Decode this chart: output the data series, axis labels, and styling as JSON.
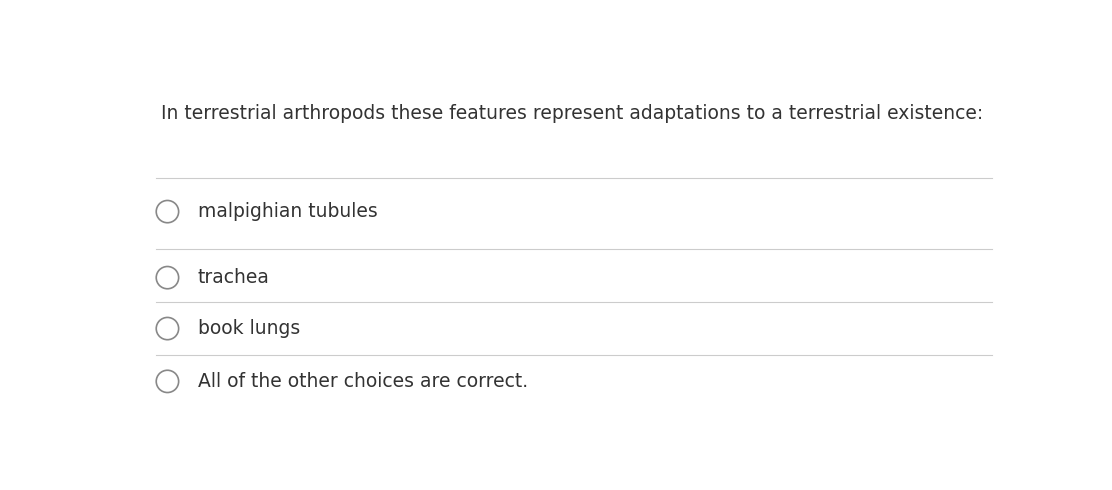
{
  "question": "In terrestrial arthropods these features represent adaptations to a terrestrial existence:",
  "options": [
    "malpighian tubules",
    "trachea",
    "book lungs",
    "All of the other choices are correct."
  ],
  "background_color": "#ffffff",
  "text_color": "#333333",
  "line_color": "#cccccc",
  "question_fontsize": 13.5,
  "option_fontsize": 13.5,
  "circle_color": "#888888",
  "fig_width": 11.12,
  "fig_height": 4.9
}
